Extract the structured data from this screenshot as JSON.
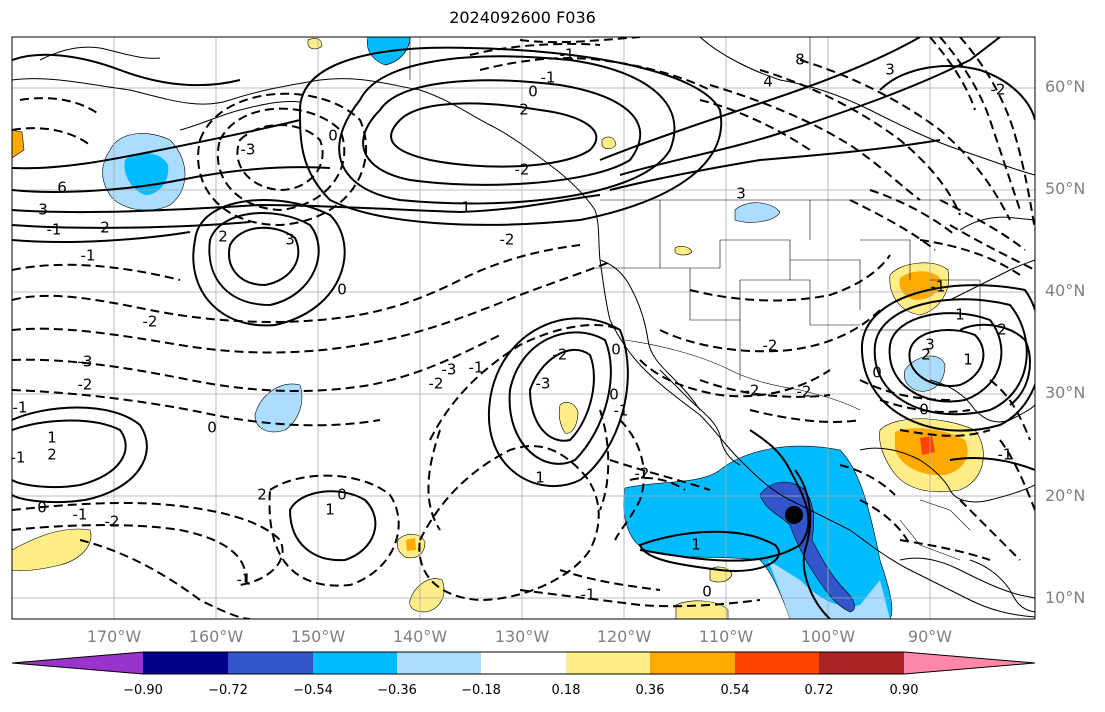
{
  "title": "2024092600 F036",
  "lat_labels": [
    "60°N",
    "50°N",
    "40°N",
    "30°N",
    "20°N",
    "10°N"
  ],
  "lon_labels": [
    "170°W",
    "160°W",
    "150°W",
    "140°W",
    "130°W",
    "120°W",
    "110°W",
    "100°W",
    "90°W"
  ],
  "colorbar": {
    "colors": [
      "#9933cc",
      "#000088",
      "#3355cc",
      "#00bbff",
      "#aaddff",
      "#ffffff",
      "#ffee88",
      "#ffaa00",
      "#ff4400",
      "#aa2222",
      "#ff88aa"
    ],
    "tick_labels": [
      "−0.90",
      "−0.72",
      "−0.54",
      "−0.36",
      "−0.18",
      "0.18",
      "0.36",
      "0.54",
      "0.72",
      "0.90"
    ]
  },
  "contour_labels": [
    "2",
    "0",
    "-1",
    "-1",
    "-2",
    "1",
    "-2",
    "8",
    "3",
    "4",
    "-3",
    "6",
    "3",
    "0",
    "2",
    "-1",
    "-2",
    "2",
    "3",
    "-1",
    "-2",
    "-3",
    "-1",
    "0",
    "-2",
    "-3",
    "-1",
    "1",
    "-1",
    "2",
    "0",
    "-1",
    "-2",
    "0",
    "2",
    "0",
    "1",
    "-1",
    "1",
    "0",
    "-1",
    "-3",
    "-2",
    "0",
    "-2",
    "1",
    "3",
    "2",
    "1",
    "-1",
    "0",
    "0",
    "-2",
    "-2",
    "-2",
    "-1",
    "0",
    "1",
    "2",
    "-1",
    "3",
    "-2"
  ]
}
